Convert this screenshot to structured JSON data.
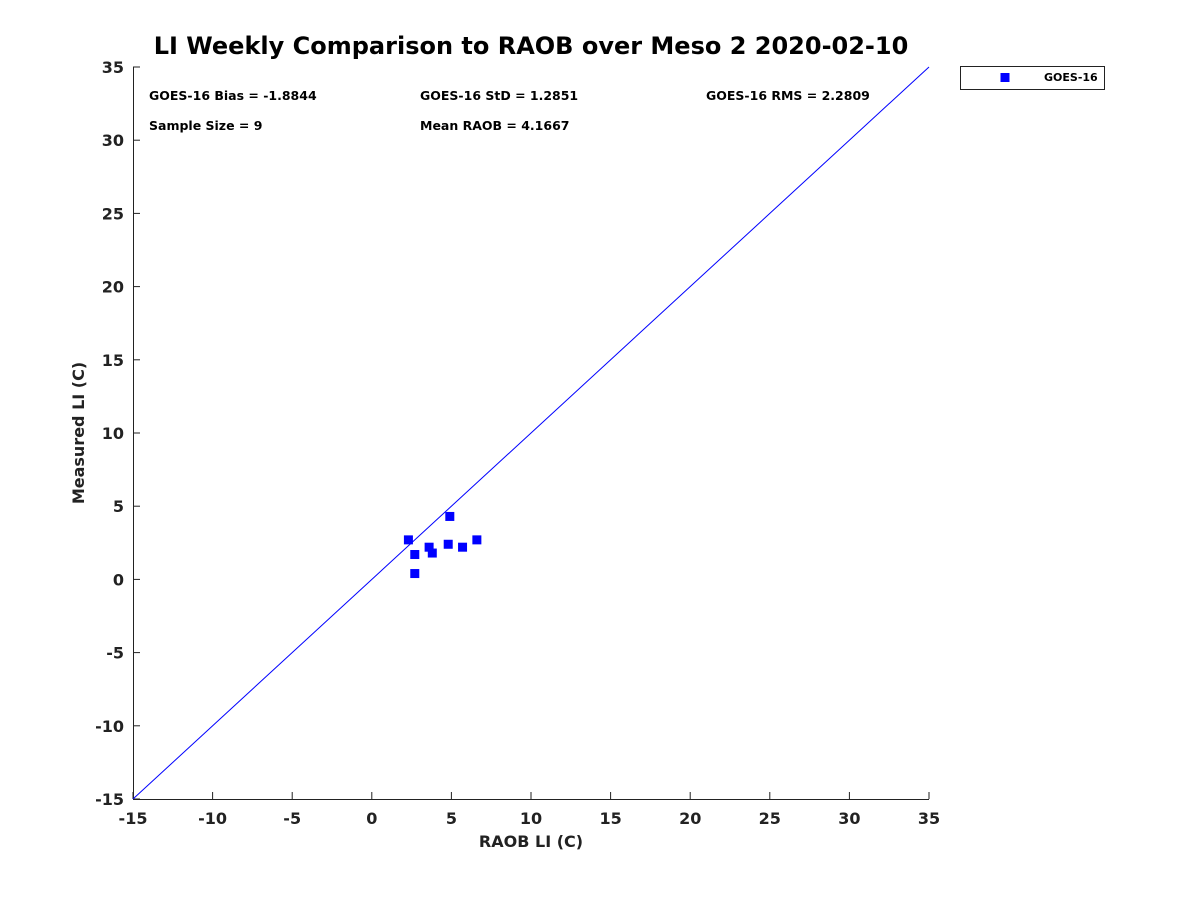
{
  "chart_data": {
    "type": "scatter",
    "title": "LI Weekly Comparison to RAOB over Meso 2 2020-02-10",
    "xlabel": "RAOB LI (C)",
    "ylabel": "Measured LI (C)",
    "xlim": [
      -15,
      35
    ],
    "ylim": [
      -15,
      35
    ],
    "xticks": [
      -15,
      -10,
      -5,
      0,
      5,
      10,
      15,
      20,
      25,
      30,
      35
    ],
    "yticks": [
      -15,
      -10,
      -5,
      0,
      5,
      10,
      15,
      20,
      25,
      30,
      35
    ],
    "grid": false,
    "legend_position": "outside-top-right",
    "reference_line": {
      "name": "one-to-one",
      "from": [
        -15,
        -15
      ],
      "to": [
        35,
        35
      ],
      "color": "#0000ff"
    },
    "series": [
      {
        "name": "GOES-16",
        "marker": "square",
        "color": "#0000ff",
        "points": [
          {
            "x": 2.3,
            "y": 2.7
          },
          {
            "x": 2.7,
            "y": 1.7
          },
          {
            "x": 2.7,
            "y": 0.4
          },
          {
            "x": 3.6,
            "y": 2.2
          },
          {
            "x": 3.8,
            "y": 1.8
          },
          {
            "x": 4.8,
            "y": 2.4
          },
          {
            "x": 4.9,
            "y": 4.3
          },
          {
            "x": 5.7,
            "y": 2.2
          },
          {
            "x": 6.6,
            "y": 2.7
          }
        ]
      }
    ],
    "annotations": {
      "bias": "GOES-16 Bias = -1.8844",
      "std": "GOES-16 StD = 1.2851",
      "rms": "GOES-16 RMS = 2.2809",
      "sample_size": "Sample Size = 9",
      "mean_raob": "Mean RAOB = 4.1667"
    }
  }
}
